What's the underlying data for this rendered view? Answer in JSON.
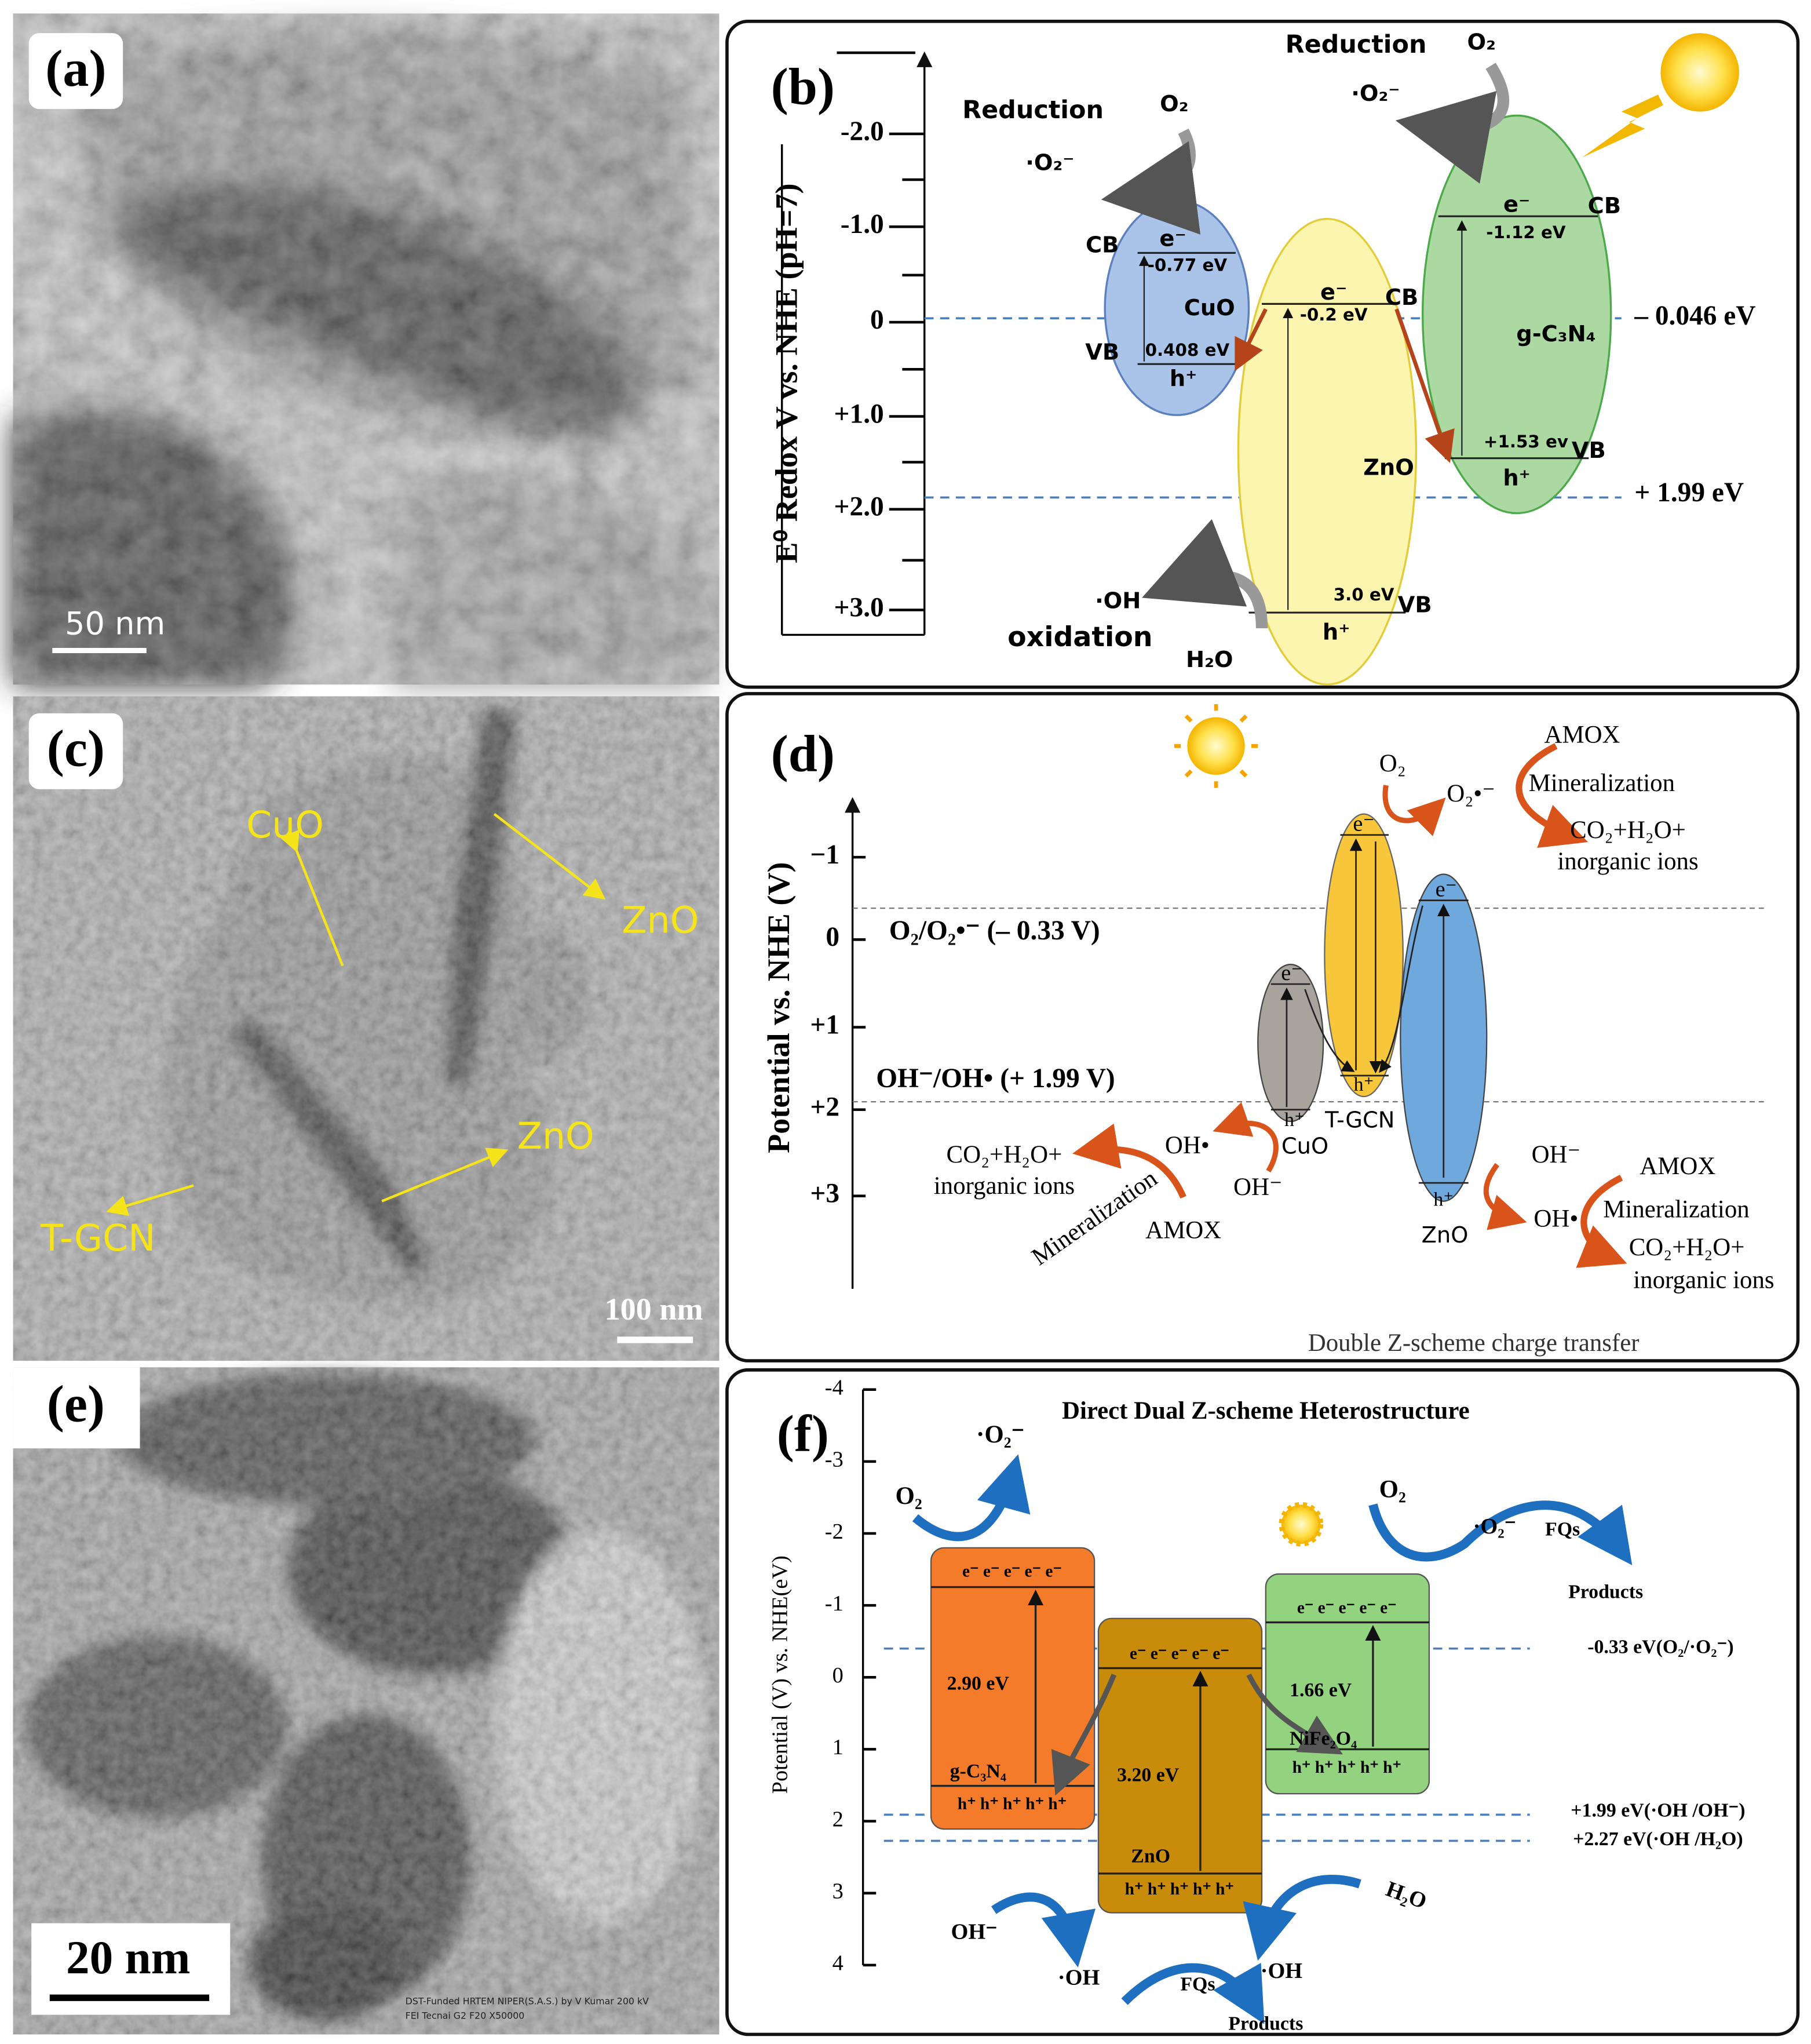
{
  "panel_a": {
    "label": "(a)",
    "scale_bar": "50 nm"
  },
  "panel_b": {
    "label": "(b)",
    "axis_title": "E⁰ Redox V vs. NHE (pH=7)",
    "ticks": [
      "-2.0",
      "-1.0",
      "0",
      "+1.0",
      "+2.0",
      "+3.0"
    ],
    "levels": [
      "– 0.046 eV",
      "+ 1.99 eV"
    ],
    "cuo": {
      "name": "CuO",
      "cb": "CB",
      "vb": "VB",
      "e": "e⁻",
      "h": "h⁺",
      "cb_energy": "-0.77 eV",
      "vb_energy": "0.408 eV"
    },
    "zno": {
      "name": "ZnO",
      "cb": "CB",
      "vb": "VB",
      "e": "e⁻",
      "h": "h⁺",
      "cb_energy": "-0.2 eV",
      "vb_energy": "3.0 eV"
    },
    "gcn": {
      "name": "g-C₃N₄",
      "cb": "CB",
      "vb": "VB",
      "e": "e⁻",
      "h": "h⁺",
      "cb_energy": "-1.12 eV",
      "vb_energy": "+1.53 ev"
    },
    "reduction_left": "Reduction",
    "o2_left": "O₂",
    "superoxide_left": "·O₂⁻",
    "reduction_right": "Reduction",
    "o2_right": "O₂",
    "superoxide_right": "·O₂⁻",
    "hydroxyl": "·OH",
    "oxidation": "oxidation",
    "water": "H₂O"
  },
  "panel_c": {
    "label": "(c)",
    "cuo": "CuO",
    "zno_top": "ZnO",
    "zno_bottom": "ZnO",
    "tgcn": "T-GCN",
    "scale_bar": "100 nm"
  },
  "panel_d": {
    "label": "(d)",
    "axis_title": "Potential vs. NHE (V)",
    "ticks": [
      "−1",
      "0",
      "+1",
      "+2",
      "+3"
    ],
    "level_top": "O₂/O₂•⁻ (– 0.33 V)",
    "level_bottom": "OH⁻/OH• (+ 1.99 V)",
    "e": "e⁻",
    "h": "h⁺",
    "cuo": "CuO",
    "tgcn": "T-GCN",
    "zno": "ZnO",
    "top": {
      "o2": "O₂",
      "superoxide": "O₂•⁻",
      "amox": "AMOX",
      "mineralization": "Mineralization",
      "products": "CO₂+H₂O+",
      "ions": "inorganic ions"
    },
    "left": {
      "radical": "OH•",
      "anion": "OH⁻",
      "products": "CO₂+H₂O+",
      "ions": "inorganic ions",
      "mineralization": "Mineralization",
      "amox": "AMOX"
    },
    "right": {
      "anion": "OH⁻",
      "radical": "OH•",
      "amox": "AMOX",
      "mineralization": "Mineralization",
      "products": "CO₂+H₂O+",
      "ions": "inorganic ions"
    },
    "caption": "Double Z-scheme charge transfer"
  },
  "panel_e": {
    "label": "(e)",
    "scale_bar": "20 nm",
    "footer_1": "DST-Funded HRTEM NIPER(S.A.S.)  by V Kumar  200 kV",
    "footer_2": "FEI Tecnai G2 F20   X50000"
  },
  "panel_f": {
    "label": "(f)",
    "title": "Direct Dual Z-scheme Heterostructure",
    "axis_title": "Potential (V) vs. NHE(eV)",
    "ticks": [
      "-4",
      "-3",
      "-2",
      "-1",
      "0",
      "1",
      "2",
      "3",
      "4"
    ],
    "levels": [
      "-0.33 eV(O₂/·O₂⁻)",
      "+1.99 eV(·OH /OH⁻)",
      "+2.27 eV(·OH /H₂O)"
    ],
    "electrons": "e⁻ e⁻ e⁻ e⁻ e⁻",
    "holes": "h⁺ h⁺ h⁺ h⁺ h⁺",
    "gcn": {
      "name": "g-C₃N₄",
      "gap": "2.90 eV"
    },
    "zno": {
      "name": "ZnO",
      "gap": "3.20 eV"
    },
    "nife": {
      "name": "NiFe₂O₄",
      "gap": "1.66 eV"
    },
    "superoxide_left": "·O₂⁻",
    "o2_left": "O₂",
    "o2_right": "O₂",
    "superoxide_right": "·O₂⁻",
    "fqs_top": "FQs",
    "products_top": "Products",
    "hydroxide": "OH⁻",
    "radical_left": "·OH",
    "fqs_bottom": "FQs",
    "products_bottom": "Products",
    "radical_right": "·OH",
    "water": "H₂O"
  }
}
